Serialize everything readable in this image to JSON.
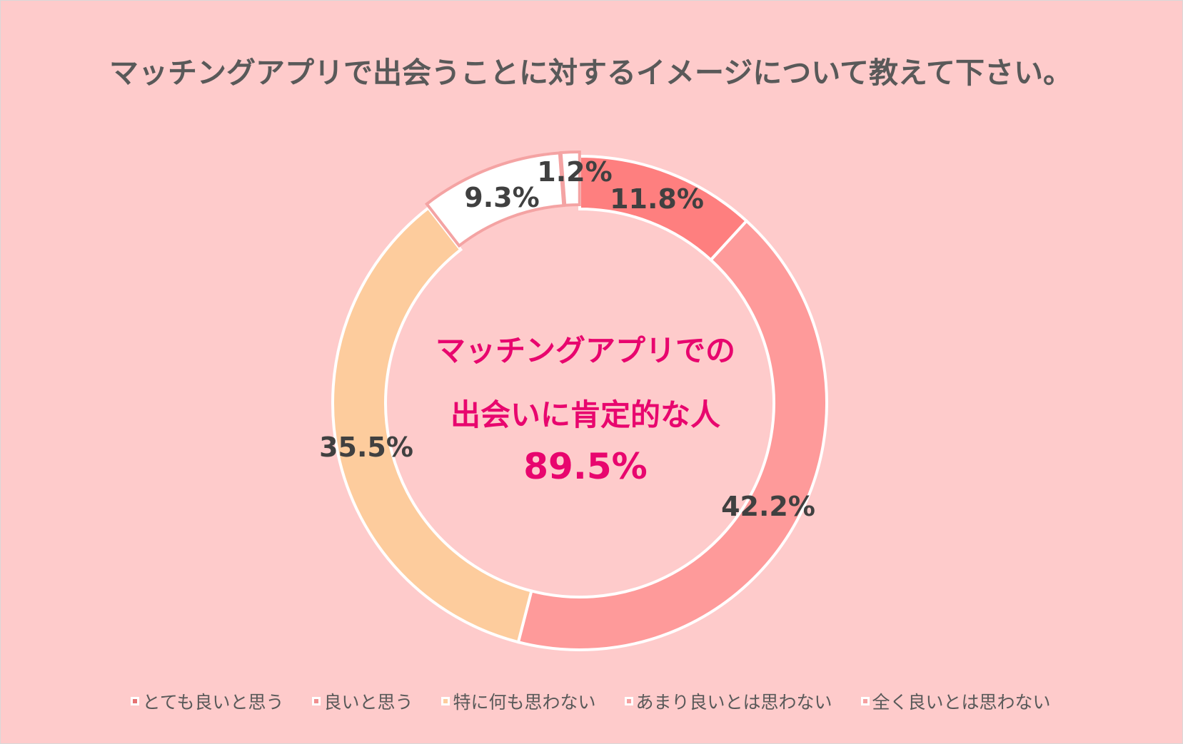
{
  "chart_data": {
    "type": "pie",
    "title": "マッチングアプリで出会うことに対するイメージについて教えて下さい。",
    "categories": [
      "とても良いと思う",
      "良いと思う",
      "特に何も思わない",
      "あまり良いとは思わない",
      "全く良いとは思わない"
    ],
    "values": [
      11.8,
      42.2,
      35.5,
      9.3,
      1.2
    ],
    "value_labels": [
      "11.8%",
      "42.2%",
      "35.5%",
      "9.3%",
      "1.2%"
    ],
    "colors": [
      "#fe7f7f",
      "#fe9a9a",
      "#fdcc9d",
      "#ffffff",
      "#ffffff"
    ],
    "legend_position": "bottom",
    "center_annotation": {
      "line1": "マッチングアプリでの",
      "line2": "出会いに肯定的な人",
      "value": "89.5%"
    }
  },
  "legend_swatch_colors": [
    "#e57373",
    "#f08f8f",
    "#fdcc9d",
    "#f5a0a0",
    "#f5a0a0"
  ]
}
